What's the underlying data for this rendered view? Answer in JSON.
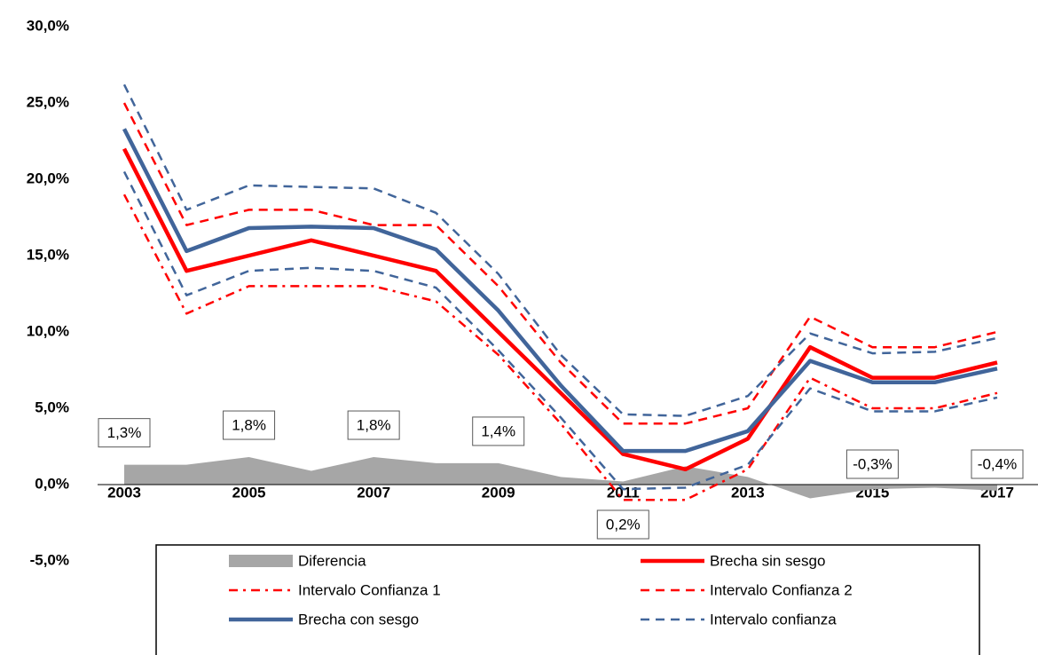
{
  "chart_data": {
    "type": "line",
    "x": [
      2003,
      2004,
      2005,
      2006,
      2007,
      2008,
      2009,
      2010,
      2011,
      2012,
      2013,
      2014,
      2015,
      2016,
      2017
    ],
    "xlim": [
      2003,
      2017
    ],
    "xticks": [
      2003,
      2005,
      2007,
      2009,
      2011,
      2013,
      2015,
      2017
    ],
    "ylim": [
      -5,
      30
    ],
    "yticks": [
      {
        "value": -5,
        "label": "-5,0%"
      },
      {
        "value": 0,
        "label": "0,0%"
      },
      {
        "value": 5,
        "label": "5,0%"
      },
      {
        "value": 10,
        "label": "10,0%"
      },
      {
        "value": 15,
        "label": "15,0%"
      },
      {
        "value": 20,
        "label": "20,0%"
      },
      {
        "value": 25,
        "label": "25,0%"
      },
      {
        "value": 30,
        "label": "30,0%"
      }
    ],
    "series": [
      {
        "name": "Diferencia",
        "type": "area",
        "color": "#a6a6a6",
        "values": [
          1.3,
          1.3,
          1.8,
          0.9,
          1.8,
          1.4,
          1.4,
          0.5,
          0.2,
          1.2,
          0.5,
          -0.9,
          -0.3,
          -0.2,
          -0.4
        ],
        "value_labels": [
          "1,3%",
          null,
          "1,8%",
          null,
          "1,8%",
          null,
          "1,4%",
          null,
          "0,2%",
          null,
          null,
          null,
          "-0,3%",
          null,
          "-0,4%"
        ]
      },
      {
        "name": "Brecha sin sesgo",
        "color": "#ff0000",
        "dash": "solid",
        "values": [
          22.0,
          14.0,
          15.0,
          16.0,
          15.0,
          14.0,
          10.0,
          6.0,
          2.0,
          1.0,
          3.0,
          9.0,
          7.0,
          7.0,
          8.0
        ]
      },
      {
        "name": "Intervalo Confianza 1",
        "color": "#ff0000",
        "dash": "dash-dot",
        "values": [
          19.0,
          11.2,
          13.0,
          13.0,
          13.0,
          12.0,
          8.5,
          4.0,
          -1.0,
          -1.0,
          1.0,
          7.0,
          5.0,
          5.0,
          6.0
        ]
      },
      {
        "name": "Intervalo Confianza 2",
        "color": "#ff0000",
        "dash": "dash",
        "values": [
          25.0,
          17.0,
          18.0,
          18.0,
          17.0,
          17.0,
          13.0,
          8.0,
          4.0,
          4.0,
          5.0,
          11.0,
          9.0,
          9.0,
          10.0
        ]
      },
      {
        "name": "Brecha con sesgo",
        "color": "#41659a",
        "dash": "solid",
        "values": [
          23.3,
          15.3,
          16.8,
          16.9,
          16.8,
          15.4,
          11.4,
          6.5,
          2.2,
          2.2,
          3.5,
          8.1,
          6.7,
          6.7,
          7.6
        ]
      },
      {
        "name": "Intervalo confianza",
        "color": "#41659a",
        "dash": "dash",
        "values": [
          26.2,
          18.0,
          19.6,
          19.5,
          19.4,
          17.8,
          13.8,
          8.5,
          4.6,
          4.5,
          5.8,
          9.9,
          8.6,
          8.7,
          9.6
        ],
        "lower": [
          20.5,
          12.4,
          14.0,
          14.2,
          14.0,
          12.9,
          8.8,
          4.4,
          -0.3,
          -0.2,
          1.3,
          6.3,
          4.8,
          4.8,
          5.7
        ]
      }
    ]
  }
}
